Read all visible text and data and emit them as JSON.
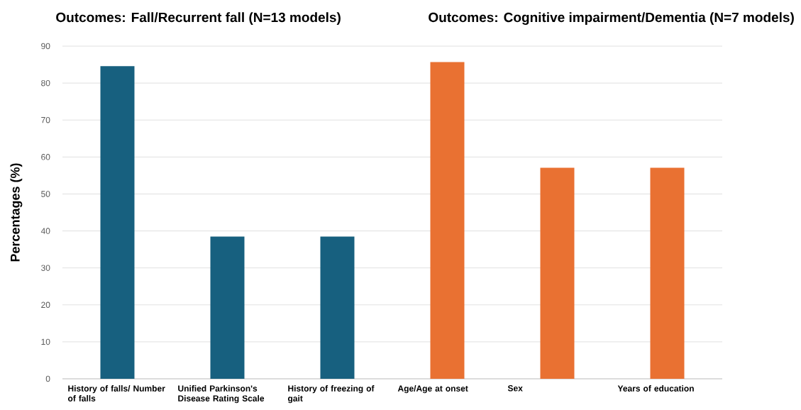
{
  "chart_data": {
    "type": "bar",
    "ylabel": "Percentages (%)",
    "annotations": [
      "Outcomes: Fall/Recurrent fall (N=13 models)",
      "Outcomes: Cognitive impairment/Dementia (N=7 models)"
    ],
    "categories": [
      "History of falls/ Number of falls",
      "Unified Parkinson's Disease Rating Scale",
      "History of freezing of gait",
      "Age/Age at onset",
      "Sex",
      "Years of education"
    ],
    "values": [
      84.6,
      38.5,
      38.5,
      85.7,
      57.1,
      57.1
    ],
    "colors": [
      "#17607f",
      "#17607f",
      "#17607f",
      "#e97132",
      "#e97132",
      "#e97132"
    ],
    "ylim": [
      0,
      90
    ],
    "yticks": [
      0,
      10,
      20,
      30,
      40,
      50,
      60,
      70,
      80,
      90
    ],
    "grid": "y"
  }
}
